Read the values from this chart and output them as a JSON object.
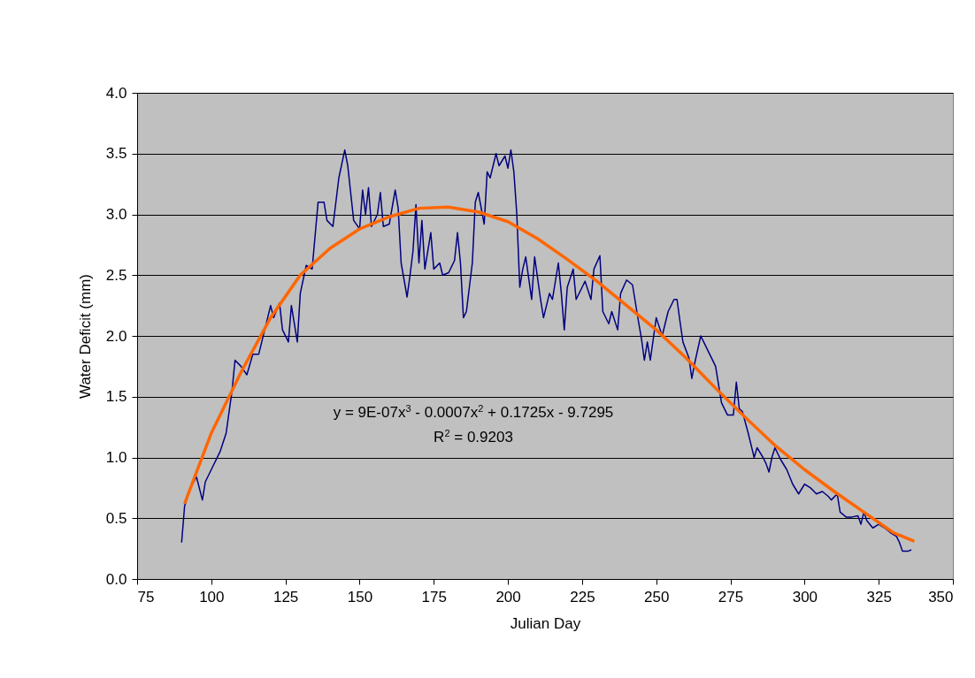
{
  "chart_data": {
    "type": "line",
    "xlabel": "Julian Day",
    "ylabel": "Water Deficit (mm)",
    "xlim": [
      75,
      350
    ],
    "xticks": [
      75,
      100,
      125,
      150,
      175,
      200,
      225,
      250,
      275,
      300,
      325,
      350
    ],
    "ylim": [
      0,
      4
    ],
    "yticks": [
      {
        "value": 0,
        "label": "0.0"
      },
      {
        "value": 0.5,
        "label": "0.5"
      },
      {
        "value": 1,
        "label": "1.0"
      },
      {
        "value": 1.5,
        "label": "1.5"
      },
      {
        "value": 2,
        "label": "2.0"
      },
      {
        "value": 2.5,
        "label": "2.5"
      },
      {
        "value": 3,
        "label": "3.0"
      },
      {
        "value": 3.5,
        "label": "3.5"
      },
      {
        "value": 4,
        "label": "4.0"
      }
    ],
    "grid": "y",
    "marker": "none",
    "line_style": "solid",
    "annotations": [
      "y = 9E-07x$^{3}$ - 0.0007x$^{2}$ + 0.1725x - 9.7295",
      "R$^{2}$ = 0.9203"
    ],
    "series": [
      {
        "color": "#000080",
        "x": [
          90,
          91,
          93,
          95,
          97,
          98,
          100,
          103,
          105,
          107,
          108,
          110,
          112,
          114,
          116,
          118,
          120,
          121,
          123,
          124,
          126,
          127,
          129,
          130,
          132,
          134,
          136,
          138,
          139,
          141,
          143,
          145,
          146,
          148,
          150,
          151,
          152,
          153,
          154,
          156,
          157,
          158,
          160,
          162,
          163,
          164,
          166,
          167,
          168,
          169,
          170,
          171,
          172,
          174,
          175,
          177,
          178,
          180,
          182,
          183,
          184,
          185,
          186,
          188,
          189,
          190,
          192,
          193,
          194,
          196,
          197,
          199,
          200,
          201,
          202,
          203,
          204,
          205,
          206,
          208,
          209,
          211,
          212,
          214,
          215,
          217,
          218,
          219,
          220,
          222,
          223,
          225,
          226,
          228,
          229,
          231,
          232,
          234,
          235,
          237,
          238,
          240,
          242,
          244,
          245,
          246,
          247,
          248,
          250,
          252,
          254,
          256,
          257,
          258,
          259,
          261,
          262,
          263,
          265,
          266,
          268,
          270,
          272,
          274,
          276,
          277,
          278,
          279,
          281,
          283,
          284,
          286,
          287,
          288,
          289,
          290,
          292,
          294,
          296,
          298,
          300,
          302,
          304,
          306,
          308,
          309,
          311,
          312,
          314,
          316,
          318,
          319,
          320,
          321,
          323,
          325,
          327,
          329,
          331,
          332,
          333,
          335,
          336
        ],
        "values": [
          0.3,
          0.6,
          0.75,
          0.84,
          0.65,
          0.8,
          0.9,
          1.05,
          1.2,
          1.55,
          1.8,
          1.75,
          1.68,
          1.85,
          1.85,
          2.05,
          2.25,
          2.15,
          2.27,
          2.05,
          1.95,
          2.25,
          1.95,
          2.35,
          2.58,
          2.55,
          3.1,
          3.1,
          2.95,
          2.9,
          3.3,
          3.53,
          3.4,
          2.95,
          2.88,
          3.2,
          3.0,
          3.22,
          2.9,
          3.0,
          3.18,
          2.9,
          2.92,
          3.2,
          3.05,
          2.6,
          2.32,
          2.5,
          2.7,
          3.08,
          2.6,
          2.95,
          2.55,
          2.85,
          2.55,
          2.6,
          2.5,
          2.52,
          2.62,
          2.85,
          2.6,
          2.15,
          2.2,
          2.6,
          3.1,
          3.18,
          2.92,
          3.35,
          3.3,
          3.5,
          3.4,
          3.48,
          3.38,
          3.53,
          3.35,
          3.0,
          2.4,
          2.55,
          2.65,
          2.3,
          2.65,
          2.3,
          2.15,
          2.35,
          2.3,
          2.6,
          2.35,
          2.05,
          2.4,
          2.55,
          2.3,
          2.4,
          2.45,
          2.3,
          2.55,
          2.66,
          2.2,
          2.1,
          2.2,
          2.05,
          2.35,
          2.46,
          2.42,
          2.12,
          1.98,
          1.8,
          1.95,
          1.8,
          2.15,
          2.0,
          2.2,
          2.3,
          2.3,
          2.12,
          1.95,
          1.82,
          1.65,
          1.78,
          2.0,
          1.95,
          1.85,
          1.75,
          1.45,
          1.35,
          1.35,
          1.62,
          1.4,
          1.38,
          1.2,
          1.0,
          1.08,
          1.0,
          0.95,
          0.88,
          1.0,
          1.08,
          0.98,
          0.9,
          0.78,
          0.7,
          0.78,
          0.75,
          0.7,
          0.72,
          0.68,
          0.65,
          0.7,
          0.55,
          0.51,
          0.51,
          0.52,
          0.45,
          0.55,
          0.48,
          0.42,
          0.45,
          0.42,
          0.38,
          0.35,
          0.3,
          0.23,
          0.23,
          0.24
        ]
      },
      {
        "color": "#ff6600",
        "x": [
          91,
          100,
          110,
          120,
          130,
          140,
          150,
          160,
          170,
          180,
          190,
          200,
          210,
          220,
          230,
          240,
          250,
          260,
          270,
          280,
          290,
          300,
          310,
          320,
          330,
          337
        ],
        "values": [
          0.62,
          1.2,
          1.7,
          2.15,
          2.5,
          2.72,
          2.88,
          2.98,
          3.05,
          3.06,
          3.02,
          2.94,
          2.8,
          2.63,
          2.45,
          2.25,
          2.05,
          1.82,
          1.57,
          1.33,
          1.1,
          0.9,
          0.72,
          0.55,
          0.38,
          0.31
        ]
      }
    ]
  }
}
